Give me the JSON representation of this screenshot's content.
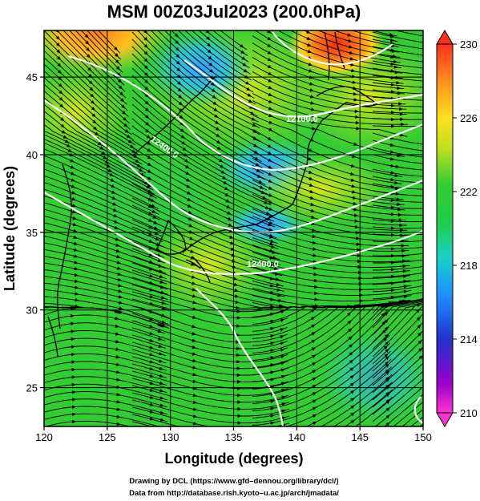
{
  "title": "MSM 00Z03Jul2023 (200.0hPa)",
  "x_axis": {
    "label": "Longitude (degrees)",
    "range": [
      120,
      150
    ],
    "ticks": [
      "120",
      "125",
      "130",
      "135",
      "140",
      "145",
      "150"
    ]
  },
  "y_axis": {
    "label": "Latitude  (degrees)",
    "range": [
      22.5,
      48
    ],
    "ticks": [
      "25",
      "30",
      "35",
      "40",
      "45"
    ]
  },
  "colorbar": {
    "range": [
      210,
      230
    ],
    "ticks": [
      "230",
      "226",
      "222",
      "218",
      "214",
      "210"
    ]
  },
  "contour_labels": [
    "12100.0",
    "12400.0",
    "12400.0"
  ],
  "credits": {
    "line1": "Drawing by DCL (https://www.gfd–dennou.org/library/dcl/)",
    "line2": "Data from http://database.rish.kyoto–u.ac.jp/arch/jmadata/"
  },
  "colors": {
    "background_field": "#33cc33",
    "warm": "#ff3c1e",
    "cool": "#4aa8ff",
    "contour": "#ffffff",
    "streamline": "#000000"
  }
}
